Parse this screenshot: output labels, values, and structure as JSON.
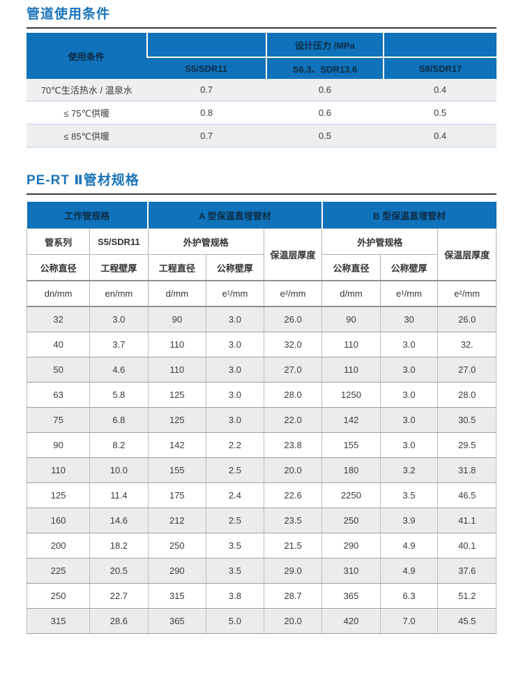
{
  "colors": {
    "header_blue": "#0f72ba",
    "title_blue": "#1b74ba",
    "header_text": "#0c2a45",
    "row_alt_gray": "#ececec",
    "divider_light_blue": "#d9e4f0",
    "title_rule_dark": "#3a3a3a"
  },
  "section1": {
    "title": "管道使用条件",
    "table": {
      "corner": "使用条件",
      "group": "设计压力 /MPa",
      "cols": [
        "S5/SDR11",
        "S6.3、SDR13.6",
        "S8/SDR17"
      ],
      "rows": [
        {
          "label": "70℃生活热水 / 温泉水",
          "values": [
            "0.7",
            "0.6",
            "0.4"
          ]
        },
        {
          "label": "≤ 75℃供暖",
          "values": [
            "0.8",
            "0.6",
            "0.5"
          ]
        },
        {
          "label": "≤ 85℃供暖",
          "values": [
            "0.7",
            "0.5",
            "0.4"
          ]
        }
      ]
    }
  },
  "section2": {
    "title": "PE-RT Ⅱ管材规格",
    "table": {
      "groups": [
        "工作管规格",
        "A 型保温直埋管材",
        "B 型保温直埋管材"
      ],
      "sub_row1": [
        "管系列",
        "S5/SDR11",
        "外护管规格",
        "保温层厚度",
        "外护管规格",
        "保温层厚度"
      ],
      "sub_row2": [
        "公称直径",
        "工程壁厚",
        "工程直径",
        "公称壁厚",
        "公称直径",
        "公称壁厚"
      ],
      "units": [
        "dn/mm",
        "en/mm",
        "d/mm",
        "e¹/mm",
        "e²/mm",
        "d/mm",
        "e¹/mm",
        "e²/mm"
      ],
      "rows": [
        [
          "32",
          "3.0",
          "90",
          "3.0",
          "26.0",
          "90",
          "30",
          "26.0"
        ],
        [
          "40",
          "3.7",
          "110",
          "3.0",
          "32.0",
          "110",
          "3.0",
          "32."
        ],
        [
          "50",
          "4.6",
          "110",
          "3.0",
          "27.0",
          "110",
          "3.0",
          "27.0"
        ],
        [
          "63",
          "5.8",
          "125",
          "3.0",
          "28.0",
          "1250",
          "3.0",
          "28.0"
        ],
        [
          "75",
          "6.8",
          "125",
          "3.0",
          "22.0",
          "142",
          "3.0",
          "30.5"
        ],
        [
          "90",
          "8.2",
          "142",
          "2.2",
          "23.8",
          "155",
          "3.0",
          "29.5"
        ],
        [
          "110",
          "10.0",
          "155",
          "2.5",
          "20.0",
          "180",
          "3.2",
          "31.8"
        ],
        [
          "125",
          "11.4",
          "175",
          "2.4",
          "22.6",
          "2250",
          "3.5",
          "46.5"
        ],
        [
          "160",
          "14.6",
          "212",
          "2.5",
          "23.5",
          "250",
          "3.9",
          "41.1"
        ],
        [
          "200",
          "18.2",
          "250",
          "3.5",
          "21.5",
          "290",
          "4.9",
          "40.1"
        ],
        [
          "225",
          "20.5",
          "290",
          "3.5",
          "29.0",
          "310",
          "4.9",
          "37.6"
        ],
        [
          "250",
          "22.7",
          "315",
          "3.8",
          "28.7",
          "365",
          "6.3",
          "51.2"
        ],
        [
          "315",
          "28.6",
          "365",
          "5.0",
          "20.0",
          "420",
          "7.0",
          "45.5"
        ]
      ]
    }
  }
}
